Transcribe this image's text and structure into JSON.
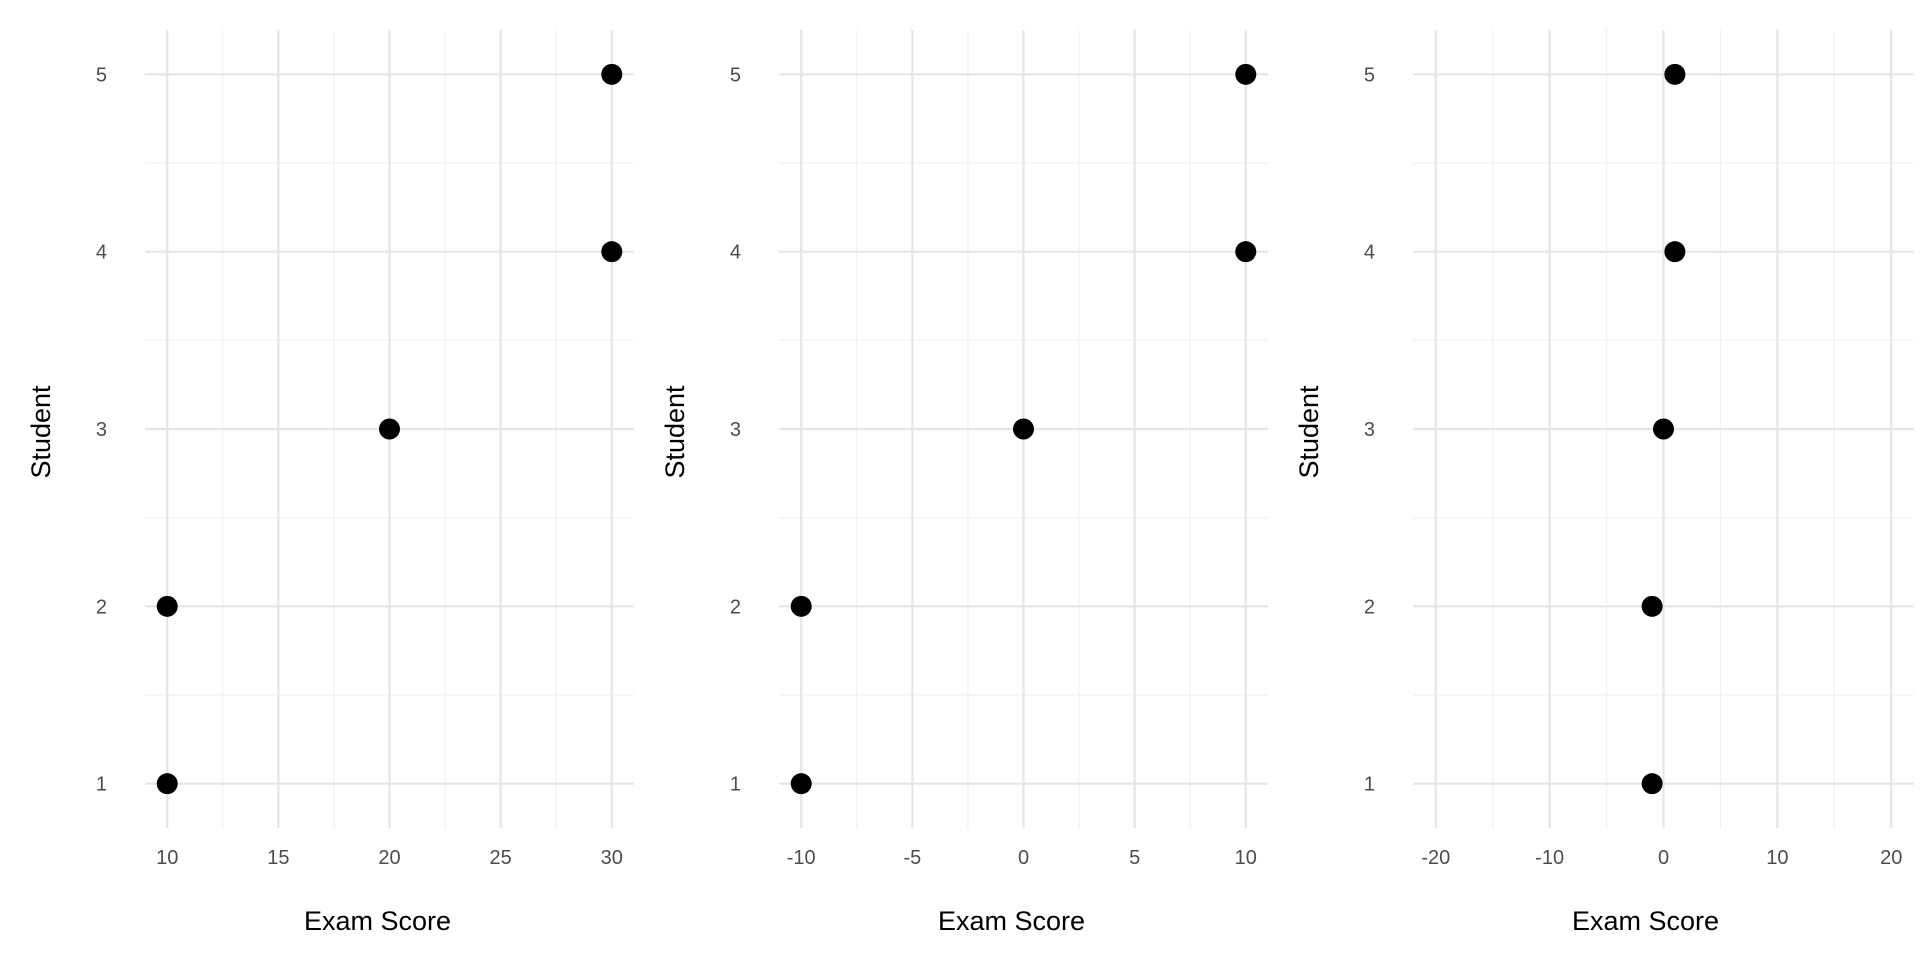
{
  "chart_data": [
    {
      "type": "scatter",
      "xlabel": "Exam Score",
      "ylabel": "Student",
      "xlim": [
        9,
        31
      ],
      "ylim": [
        0.75,
        5.25
      ],
      "x_ticks": [
        10,
        15,
        20,
        25,
        30
      ],
      "x_tick_labels": [
        "10",
        "15",
        "20",
        "25",
        "30"
      ],
      "x_minor": [
        12.5,
        17.5,
        22.5,
        27.5
      ],
      "y_ticks": [
        1,
        2,
        3,
        4,
        5
      ],
      "y_tick_labels": [
        "1",
        "2",
        "3",
        "4",
        "5"
      ],
      "y_minor": [
        1.5,
        2.5,
        3.5,
        4.5
      ],
      "grid": true,
      "points": [
        {
          "x": 10,
          "y": 1
        },
        {
          "x": 10,
          "y": 2
        },
        {
          "x": 20,
          "y": 3
        },
        {
          "x": 30,
          "y": 4
        },
        {
          "x": 30,
          "y": 5
        }
      ]
    },
    {
      "type": "scatter",
      "xlabel": "Exam Score",
      "ylabel": "Student",
      "xlim": [
        -11,
        11
      ],
      "ylim": [
        0.75,
        5.25
      ],
      "x_ticks": [
        -10,
        -5,
        0,
        5,
        10
      ],
      "x_tick_labels": [
        "-10",
        "-5",
        "0",
        "5",
        "10"
      ],
      "x_minor": [
        -7.5,
        -2.5,
        2.5,
        7.5
      ],
      "y_ticks": [
        1,
        2,
        3,
        4,
        5
      ],
      "y_tick_labels": [
        "1",
        "2",
        "3",
        "4",
        "5"
      ],
      "y_minor": [
        1.5,
        2.5,
        3.5,
        4.5
      ],
      "grid": true,
      "points": [
        {
          "x": -10,
          "y": 1
        },
        {
          "x": -10,
          "y": 2
        },
        {
          "x": 0,
          "y": 3
        },
        {
          "x": 10,
          "y": 4
        },
        {
          "x": 10,
          "y": 5
        }
      ]
    },
    {
      "type": "scatter",
      "xlabel": "Exam Score",
      "ylabel": "Student",
      "xlim": [
        -22,
        22
      ],
      "ylim": [
        0.75,
        5.25
      ],
      "x_ticks": [
        -20,
        -10,
        0,
        10,
        20
      ],
      "x_tick_labels": [
        "-20",
        "-10",
        "0",
        "10",
        "20"
      ],
      "x_minor": [
        -15,
        -5,
        5,
        15
      ],
      "y_ticks": [
        1,
        2,
        3,
        4,
        5
      ],
      "y_tick_labels": [
        "1",
        "2",
        "3",
        "4",
        "5"
      ],
      "y_minor": [
        1.5,
        2.5,
        3.5,
        4.5
      ],
      "grid": true,
      "points": [
        {
          "x": -1,
          "y": 1
        },
        {
          "x": -1,
          "y": 2
        },
        {
          "x": 0,
          "y": 3
        },
        {
          "x": 1,
          "y": 4
        },
        {
          "x": 1,
          "y": 5
        }
      ]
    }
  ],
  "colors": {
    "point": "#000000",
    "grid_major": "#e5e5e5",
    "grid_minor": "#f0f0f0",
    "tick_text": "#4d4d4d"
  }
}
